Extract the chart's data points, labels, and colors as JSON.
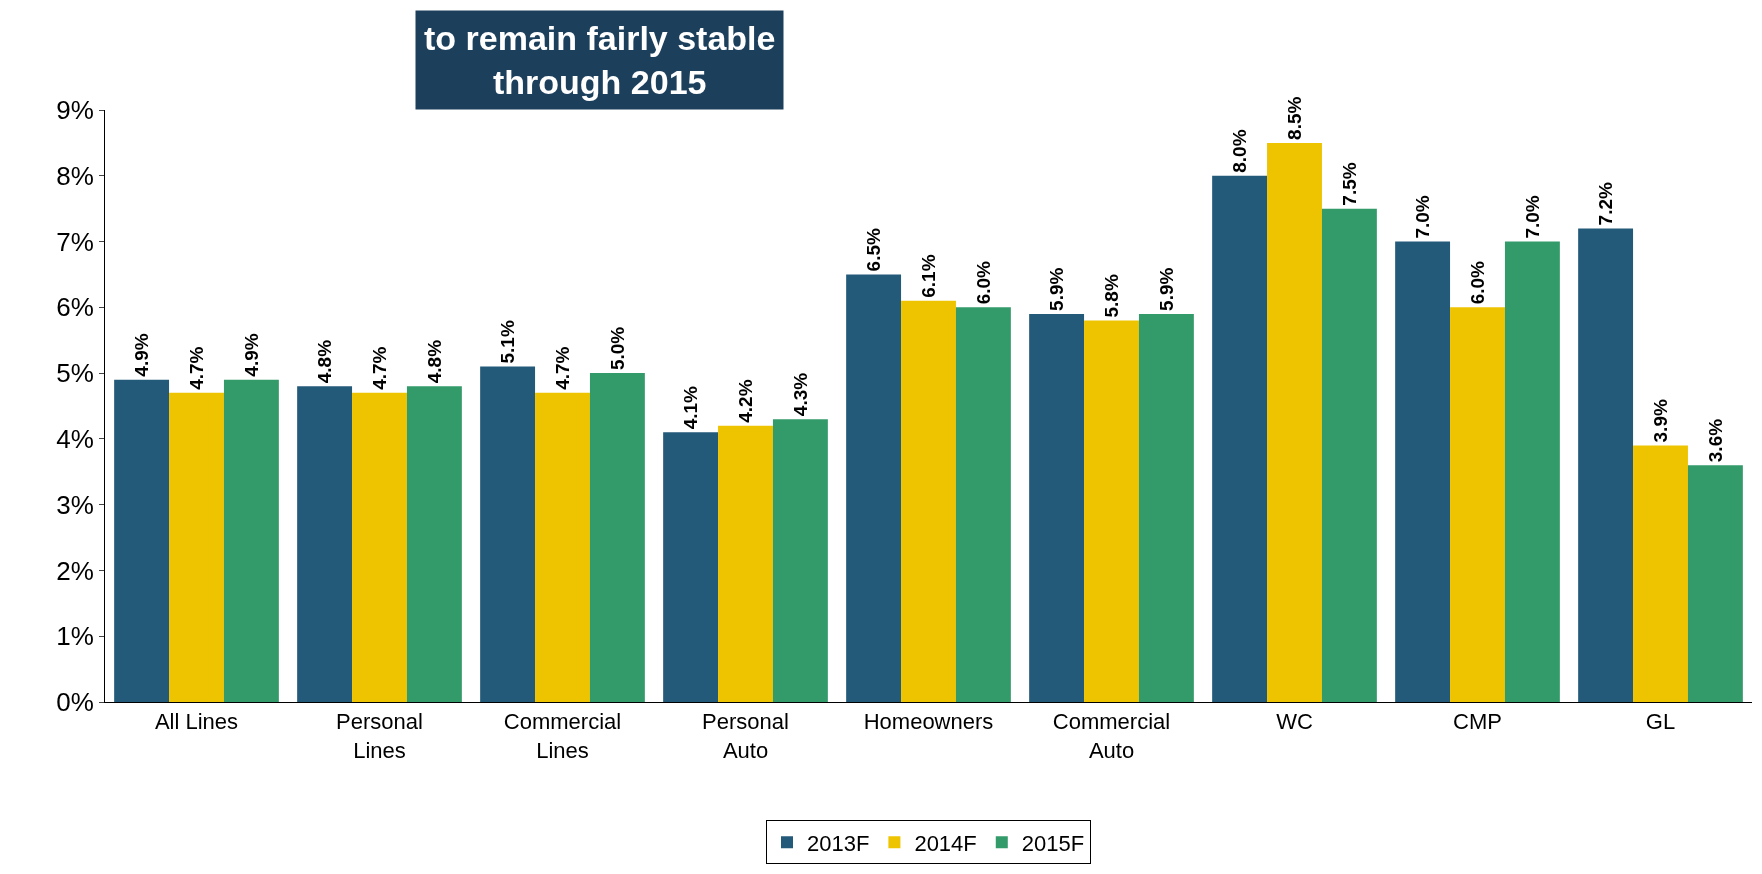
{
  "chart_data": {
    "type": "bar",
    "title": "to remain fairly stable\nthrough 2015",
    "categories": [
      "All Lines",
      "Personal\nLines",
      "Commercial\nLines",
      "Personal\nAuto",
      "Homeowners",
      "Commercial\nAuto",
      "WC",
      "CMP",
      "GL"
    ],
    "series": [
      {
        "name": "2013F",
        "color": "#235a7a",
        "values": [
          4.9,
          4.8,
          5.1,
          4.1,
          6.5,
          5.9,
          8.0,
          7.0,
          7.2
        ],
        "value_labels": [
          "4.9%",
          "4.8%",
          "5.1%",
          "4.1%",
          "6.5%",
          "5.9%",
          "8.0%",
          "7.0%",
          "7.2%"
        ]
      },
      {
        "name": "2014F",
        "color": "#eec300",
        "values": [
          4.7,
          4.7,
          4.7,
          4.2,
          6.1,
          5.8,
          8.5,
          6.0,
          3.9
        ],
        "value_labels": [
          "4.7%",
          "4.7%",
          "4.7%",
          "4.2%",
          "6.1%",
          "5.8%",
          "8.5%",
          "6.0%",
          "3.9%"
        ]
      },
      {
        "name": "2015F",
        "color": "#339a6a",
        "values": [
          4.9,
          4.8,
          5.0,
          4.3,
          6.0,
          5.9,
          7.5,
          7.0,
          3.6
        ],
        "value_labels": [
          "4.9%",
          "4.8%",
          "5.0%",
          "4.3%",
          "6.0%",
          "5.9%",
          "7.5%",
          "7.0%",
          "3.6%"
        ]
      }
    ],
    "ylim": [
      0,
      9
    ],
    "yticks": [
      {
        "value": 0,
        "label": "0%"
      },
      {
        "value": 1,
        "label": "1%"
      },
      {
        "value": 2,
        "label": "2%"
      },
      {
        "value": 3,
        "label": "3%"
      },
      {
        "value": 4,
        "label": "4%"
      },
      {
        "value": 5,
        "label": "5%"
      },
      {
        "value": 6,
        "label": "6%"
      },
      {
        "value": 7,
        "label": "7%"
      },
      {
        "value": 8,
        "label": "8%"
      },
      {
        "value": 9,
        "label": "9%"
      }
    ],
    "legend": "bottom"
  }
}
